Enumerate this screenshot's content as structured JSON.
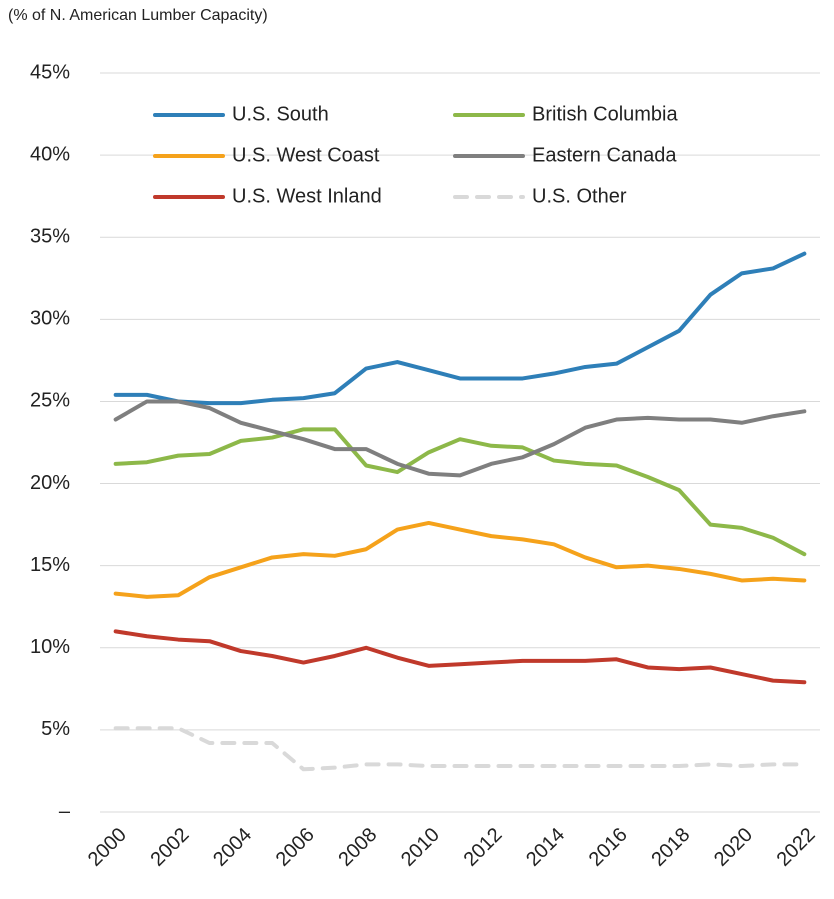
{
  "chart_data": {
    "type": "line",
    "y_label": "(% of N. American Lumber Capacity)",
    "x": [
      2000,
      2001,
      2002,
      2003,
      2004,
      2005,
      2006,
      2007,
      2008,
      2009,
      2010,
      2011,
      2012,
      2013,
      2014,
      2015,
      2016,
      2017,
      2018,
      2019,
      2020,
      2021,
      2022
    ],
    "xlim": [
      1999.5,
      2022.5
    ],
    "xticks": [
      2000,
      2002,
      2004,
      2006,
      2008,
      2010,
      2012,
      2014,
      2016,
      2018,
      2020,
      2022
    ],
    "ylim": [
      0,
      45
    ],
    "yticks": [
      {
        "value": 0,
        "label": "–"
      },
      {
        "value": 5,
        "label": "5%"
      },
      {
        "value": 10,
        "label": "10%"
      },
      {
        "value": 15,
        "label": "15%"
      },
      {
        "value": 20,
        "label": "20%"
      },
      {
        "value": 25,
        "label": "25%"
      },
      {
        "value": 30,
        "label": "30%"
      },
      {
        "value": 35,
        "label": "35%"
      },
      {
        "value": 40,
        "label": "40%"
      },
      {
        "value": 45,
        "label": "45%"
      }
    ],
    "grid": true,
    "legend": "top-left",
    "series": [
      {
        "name": "U.S. South",
        "color": "#2e7fb8",
        "values": [
          25.4,
          25.4,
          25.0,
          24.9,
          24.9,
          25.1,
          25.2,
          25.5,
          27.0,
          27.4,
          26.9,
          26.4,
          26.4,
          26.4,
          26.7,
          27.1,
          27.3,
          28.3,
          29.3,
          31.5,
          32.8,
          33.1,
          34.0
        ]
      },
      {
        "name": "British Columbia",
        "color": "#8db849",
        "values": [
          21.2,
          21.3,
          21.7,
          21.8,
          22.6,
          22.8,
          23.3,
          23.3,
          21.1,
          20.7,
          21.9,
          22.7,
          22.3,
          22.2,
          21.4,
          21.2,
          21.1,
          20.4,
          19.6,
          17.5,
          17.3,
          16.7,
          15.7
        ]
      },
      {
        "name": "U.S. West Coast",
        "color": "#f5a21b",
        "values": [
          13.3,
          13.1,
          13.2,
          14.3,
          14.9,
          15.5,
          15.7,
          15.6,
          16.0,
          17.2,
          17.6,
          17.2,
          16.8,
          16.6,
          16.3,
          15.5,
          14.9,
          15.0,
          14.8,
          14.5,
          14.1,
          14.2,
          14.1
        ]
      },
      {
        "name": "Eastern Canada",
        "color": "#7f7f7f",
        "values": [
          23.9,
          25.0,
          25.0,
          24.6,
          23.7,
          23.2,
          22.7,
          22.1,
          22.1,
          21.2,
          20.6,
          20.5,
          21.2,
          21.6,
          22.4,
          23.4,
          23.9,
          24.0,
          23.9,
          23.9,
          23.7,
          24.1,
          24.4
        ]
      },
      {
        "name": "U.S. West Inland",
        "color": "#c0392b",
        "values": [
          11.0,
          10.7,
          10.5,
          10.4,
          9.8,
          9.5,
          9.1,
          9.5,
          10.0,
          9.4,
          8.9,
          9.0,
          9.1,
          9.2,
          9.2,
          9.2,
          9.3,
          8.8,
          8.7,
          8.8,
          8.4,
          8.0,
          7.9
        ]
      },
      {
        "name": "U.S. Other",
        "color": "#d9d9d9",
        "dashed": true,
        "values": [
          5.1,
          5.1,
          5.1,
          4.2,
          4.2,
          4.2,
          2.6,
          2.7,
          2.9,
          2.9,
          2.8,
          2.8,
          2.8,
          2.8,
          2.8,
          2.8,
          2.8,
          2.8,
          2.8,
          2.9,
          2.8,
          2.9,
          2.9
        ]
      }
    ]
  }
}
